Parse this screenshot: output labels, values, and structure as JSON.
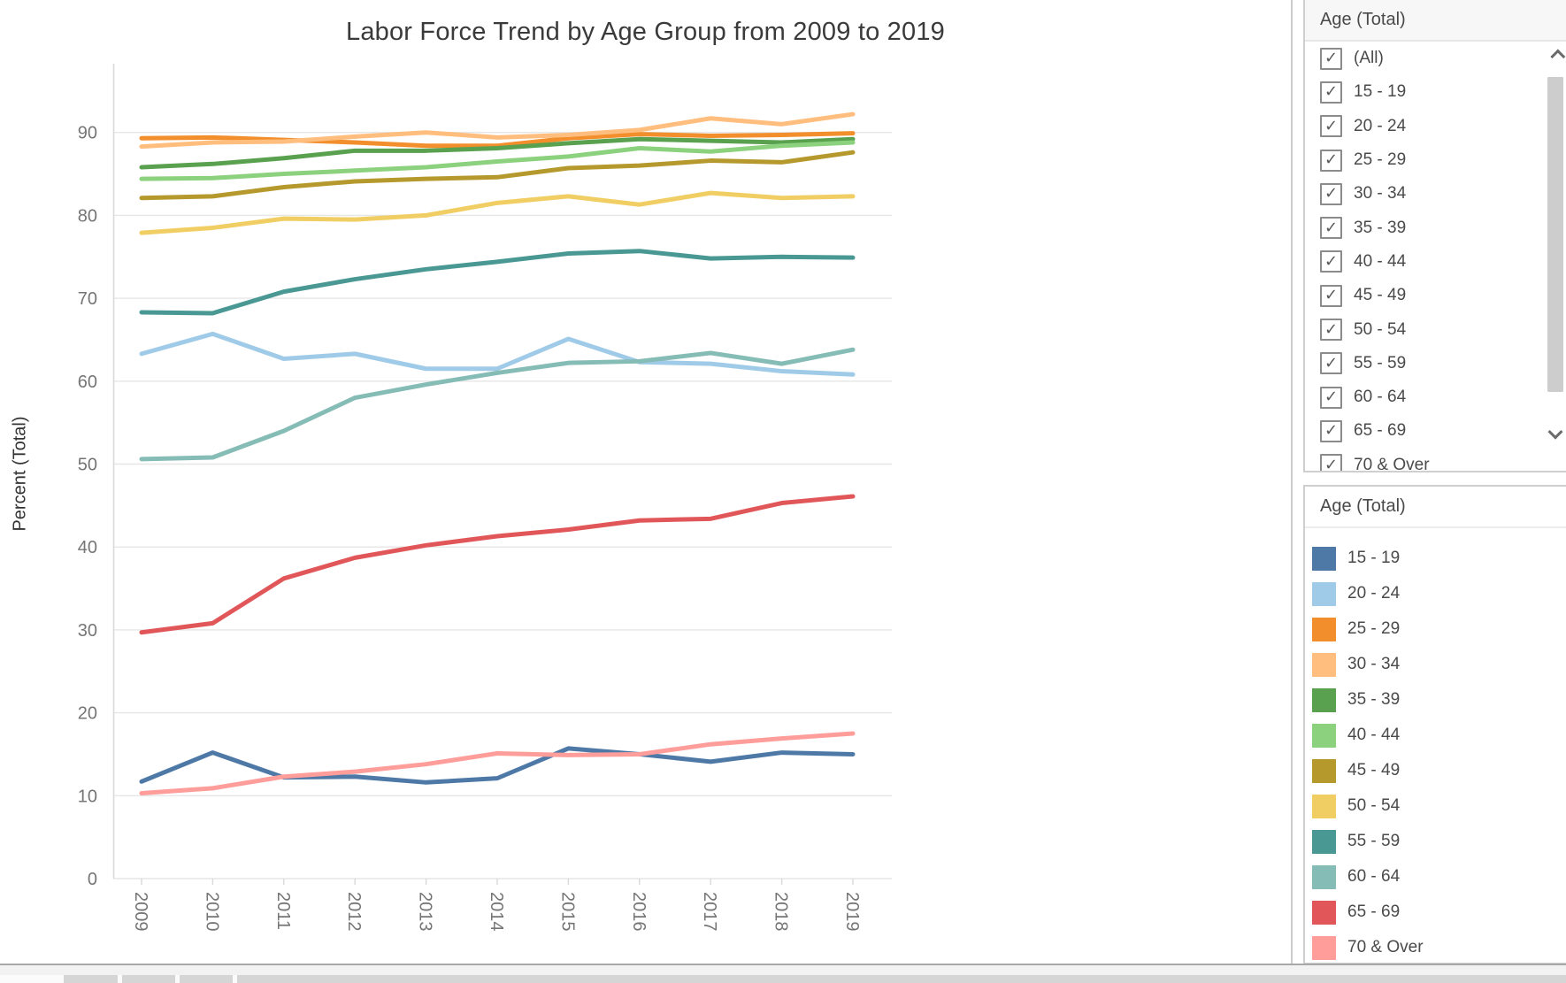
{
  "chart": {
    "title": "Labor Force Trend by Age Group from 2009 to 2019",
    "y_axis_label": "Percent (Total)"
  },
  "filter_panel": {
    "header": "Age (Total)",
    "items": [
      {
        "label": "(All)",
        "checked": true
      },
      {
        "label": "15 - 19",
        "checked": true
      },
      {
        "label": "20 - 24",
        "checked": true
      },
      {
        "label": "25 - 29",
        "checked": true
      },
      {
        "label": "30 - 34",
        "checked": true
      },
      {
        "label": "35 - 39",
        "checked": true
      },
      {
        "label": "40 - 44",
        "checked": true
      },
      {
        "label": "45 - 49",
        "checked": true
      },
      {
        "label": "50 - 54",
        "checked": true
      },
      {
        "label": "55 - 59",
        "checked": true
      },
      {
        "label": "60 - 64",
        "checked": true
      },
      {
        "label": "65 - 69",
        "checked": true
      },
      {
        "label": "70 & Over",
        "checked": true
      }
    ]
  },
  "legend_panel": {
    "header": "Age (Total)",
    "items": [
      {
        "label": "15 - 19",
        "color": "#4E79A7"
      },
      {
        "label": "20 - 24",
        "color": "#A0CBE8"
      },
      {
        "label": "25 - 29",
        "color": "#F28E2B"
      },
      {
        "label": "30 - 34",
        "color": "#FFBE7D"
      },
      {
        "label": "35 - 39",
        "color": "#59A14F"
      },
      {
        "label": "40 - 44",
        "color": "#8CD17D"
      },
      {
        "label": "45 - 49",
        "color": "#B6992D"
      },
      {
        "label": "50 - 54",
        "color": "#F1CE63"
      },
      {
        "label": "55 - 59",
        "color": "#499894"
      },
      {
        "label": "60 - 64",
        "color": "#86BCB6"
      },
      {
        "label": "65 - 69",
        "color": "#E15759"
      },
      {
        "label": "70 & Over",
        "color": "#FF9D9A"
      }
    ]
  },
  "chart_data": {
    "type": "line",
    "title": "Labor Force Trend by Age Group from 2009 to 2019",
    "xlabel": "",
    "ylabel": "Percent (Total)",
    "x": [
      2009,
      2010,
      2011,
      2012,
      2013,
      2014,
      2015,
      2016,
      2017,
      2018,
      2019
    ],
    "ylim": [
      0,
      98
    ],
    "yticks": [
      0,
      10,
      20,
      30,
      40,
      50,
      60,
      70,
      80,
      90
    ],
    "grid": "horizontal",
    "legend_position": "right",
    "series": [
      {
        "name": "15 - 19",
        "color": "#4E79A7",
        "values": [
          11.7,
          15.2,
          12.2,
          12.3,
          11.6,
          12.1,
          15.7,
          15.0,
          14.1,
          15.2,
          15.0
        ]
      },
      {
        "name": "20 - 24",
        "color": "#A0CBE8",
        "values": [
          63.3,
          65.7,
          62.7,
          63.3,
          61.5,
          61.5,
          65.1,
          62.3,
          62.1,
          61.2,
          60.8
        ]
      },
      {
        "name": "25 - 29",
        "color": "#F28E2B",
        "values": [
          89.3,
          89.4,
          89.1,
          88.8,
          88.4,
          88.4,
          89.3,
          89.8,
          89.6,
          89.7,
          89.9
        ]
      },
      {
        "name": "30 - 34",
        "color": "#FFBE7D",
        "values": [
          88.3,
          88.8,
          88.9,
          89.5,
          90.0,
          89.4,
          89.7,
          90.3,
          91.7,
          91.0,
          92.2
        ]
      },
      {
        "name": "35 - 39",
        "color": "#59A14F",
        "values": [
          85.8,
          86.2,
          86.9,
          87.8,
          87.8,
          88.1,
          88.7,
          89.2,
          89.0,
          88.8,
          89.2
        ]
      },
      {
        "name": "40 - 44",
        "color": "#8CD17D",
        "values": [
          84.4,
          84.5,
          85.0,
          85.4,
          85.8,
          86.5,
          87.1,
          88.1,
          87.7,
          88.4,
          88.8
        ]
      },
      {
        "name": "45 - 49",
        "color": "#B6992D",
        "values": [
          82.1,
          82.3,
          83.4,
          84.1,
          84.4,
          84.6,
          85.7,
          86.0,
          86.6,
          86.4,
          87.6
        ]
      },
      {
        "name": "50 - 54",
        "color": "#F1CE63",
        "values": [
          77.9,
          78.5,
          79.6,
          79.5,
          80.0,
          81.5,
          82.3,
          81.3,
          82.7,
          82.1,
          82.3
        ]
      },
      {
        "name": "55 - 59",
        "color": "#499894",
        "values": [
          68.3,
          68.2,
          70.8,
          72.3,
          73.5,
          74.4,
          75.4,
          75.7,
          74.8,
          75.0,
          74.9
        ]
      },
      {
        "name": "60 - 64",
        "color": "#86BCB6",
        "values": [
          50.6,
          50.8,
          54.0,
          58.0,
          59.6,
          61.0,
          62.2,
          62.4,
          63.4,
          62.1,
          63.8
        ]
      },
      {
        "name": "65 - 69",
        "color": "#E15759",
        "values": [
          29.7,
          30.8,
          36.2,
          38.7,
          40.2,
          41.3,
          42.1,
          43.2,
          43.4,
          45.3,
          46.1
        ]
      },
      {
        "name": "70 & Over",
        "color": "#FF9D9A",
        "values": [
          10.3,
          10.9,
          12.3,
          12.9,
          13.8,
          15.1,
          14.9,
          15.0,
          16.2,
          16.9,
          17.5
        ]
      }
    ]
  }
}
